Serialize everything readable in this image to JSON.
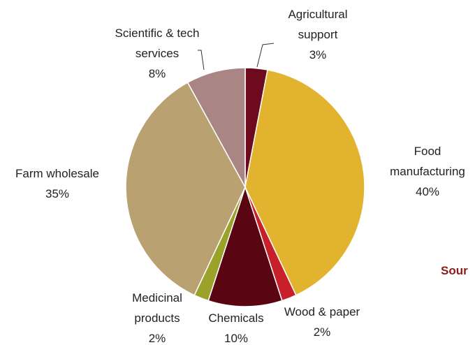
{
  "chart_data": {
    "type": "pie",
    "categories": [
      "Agricultural support",
      "Food manufacturing",
      "Wood & paper",
      "Chemicals",
      "Medicinal products",
      "Farm wholesale",
      "Scientific & tech services"
    ],
    "values": [
      3,
      40,
      2,
      10,
      2,
      35,
      8
    ],
    "value_labels": [
      "3%",
      "40%",
      "2%",
      "10%",
      "2%",
      "35%",
      "8%"
    ],
    "colors": [
      "#6e0a1e",
      "#e2b32f",
      "#c8202a",
      "#5a0612",
      "#9aa22a",
      "#b9a172",
      "#a98583"
    ],
    "note": "Sour"
  }
}
